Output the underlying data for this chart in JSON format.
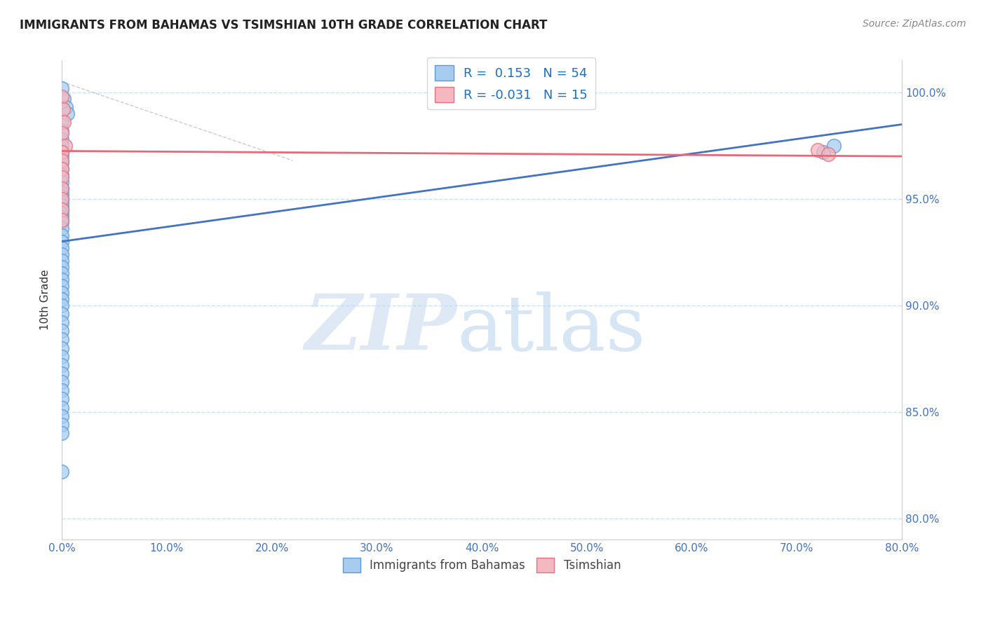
{
  "title": "IMMIGRANTS FROM BAHAMAS VS TSIMSHIAN 10TH GRADE CORRELATION CHART",
  "source": "Source: ZipAtlas.com",
  "ylabel": "10th Grade",
  "xlim": [
    0.0,
    80.0
  ],
  "ylim": [
    79.0,
    101.5
  ],
  "x_ticks": [
    0,
    10,
    20,
    30,
    40,
    50,
    60,
    70,
    80
  ],
  "y_ticks": [
    80,
    85,
    90,
    95,
    100
  ],
  "blue_R": 0.153,
  "blue_N": 54,
  "pink_R": -0.031,
  "pink_N": 15,
  "blue_color": "#A8CCF0",
  "pink_color": "#F5B8C0",
  "blue_edge_color": "#5B9BD5",
  "pink_edge_color": "#E87080",
  "blue_line_color": "#4472C4",
  "pink_line_color": "#E8687A",
  "grid_color": "#C5DFF8",
  "diag_color": "#AAAAAA",
  "blue_points_x": [
    0.0,
    0.2,
    0.4,
    0.5,
    0.0,
    0.0,
    0.0,
    0.0,
    0.0,
    0.0,
    0.0,
    0.0,
    0.0,
    0.0,
    0.0,
    0.0,
    0.0,
    0.0,
    0.0,
    0.0,
    0.0,
    0.0,
    0.0,
    0.0,
    0.0,
    0.0,
    0.0,
    0.0,
    0.0,
    0.0,
    0.0,
    0.0,
    0.0,
    0.0,
    0.0,
    0.0,
    0.0,
    0.0,
    0.0,
    0.0,
    0.0,
    0.0,
    0.0,
    0.0,
    0.0,
    0.0,
    0.0,
    0.0,
    0.0,
    0.0,
    0.0,
    0.0,
    72.5,
    73.5
  ],
  "blue_points_y": [
    100.2,
    99.7,
    99.3,
    99.0,
    98.6,
    98.2,
    97.8,
    97.5,
    97.2,
    97.0,
    96.7,
    96.4,
    96.1,
    95.8,
    95.5,
    95.3,
    95.1,
    94.9,
    94.7,
    94.5,
    94.3,
    94.1,
    93.9,
    93.6,
    93.3,
    93.0,
    92.7,
    92.4,
    92.1,
    91.8,
    91.5,
    91.2,
    90.9,
    90.6,
    90.3,
    90.0,
    89.6,
    89.2,
    88.8,
    88.4,
    88.0,
    87.6,
    87.2,
    86.8,
    86.4,
    86.0,
    85.6,
    85.2,
    84.8,
    84.4,
    84.0,
    82.2,
    97.2,
    97.5
  ],
  "pink_points_x": [
    0.0,
    0.1,
    0.2,
    0.0,
    0.3,
    0.0,
    0.0,
    0.0,
    0.0,
    0.0,
    0.0,
    0.0,
    0.0,
    72.0,
    73.0
  ],
  "pink_points_y": [
    99.8,
    99.2,
    98.6,
    98.1,
    97.5,
    97.2,
    96.8,
    96.4,
    96.0,
    95.5,
    95.0,
    94.5,
    94.0,
    97.3,
    97.1
  ],
  "blue_line_x0": 0.0,
  "blue_line_y0": 93.0,
  "blue_line_x1": 80.0,
  "blue_line_y1": 98.5,
  "pink_line_x0": 0.0,
  "pink_line_y0": 97.25,
  "pink_line_x1": 80.0,
  "pink_line_y1": 97.0,
  "diag_x0": 0.0,
  "diag_y0": 100.5,
  "diag_x1": 22.0,
  "diag_y1": 96.8
}
